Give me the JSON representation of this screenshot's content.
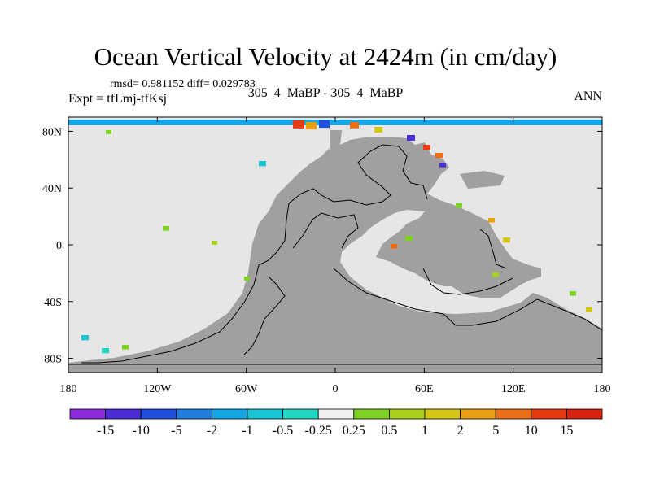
{
  "chart_data": {
    "type": "heatmap",
    "title": "Ocean Vertical Velocity at 2424m (in cm/day)",
    "stats": "rmsd= 0.981152 diff= 0.029783",
    "left_label": "Expt = tfLmj-tfKsj",
    "center_label": "305_4_MaBP - 305_4_MaBP",
    "right_label": "ANN",
    "x_ticks": [
      {
        "value": -180,
        "label": "180"
      },
      {
        "value": -120,
        "label": "120W"
      },
      {
        "value": -60,
        "label": "60W"
      },
      {
        "value": 0,
        "label": "0"
      },
      {
        "value": 60,
        "label": "60E"
      },
      {
        "value": 120,
        "label": "120E"
      },
      {
        "value": 180,
        "label": "180"
      }
    ],
    "y_ticks": [
      {
        "value": 80,
        "label": "80N"
      },
      {
        "value": 40,
        "label": "40N"
      },
      {
        "value": 0,
        "label": "0"
      },
      {
        "value": -40,
        "label": "40S"
      },
      {
        "value": -80,
        "label": "80S"
      }
    ],
    "xlim": [
      -180,
      180
    ],
    "ylim": [
      -90,
      90
    ],
    "colorbar": {
      "labels": [
        "-15",
        "-10",
        "-5",
        "-2",
        "-1",
        "-0.5",
        "-0.25",
        "0.25",
        "0.5",
        "1",
        "2",
        "5",
        "10",
        "15"
      ],
      "colors": [
        "#8a2be2",
        "#4b2cd6",
        "#1f4fe0",
        "#1e7fe0",
        "#12a8e8",
        "#15c7d6",
        "#20d6c0",
        "#f0f0f0",
        "#7ed321",
        "#a8cf1a",
        "#d4c613",
        "#e8a012",
        "#ec6d14",
        "#e83a10",
        "#d9230e"
      ]
    },
    "land_color": "#a0a0a0",
    "ocean_near_zero_color": "#e6e6e6"
  }
}
